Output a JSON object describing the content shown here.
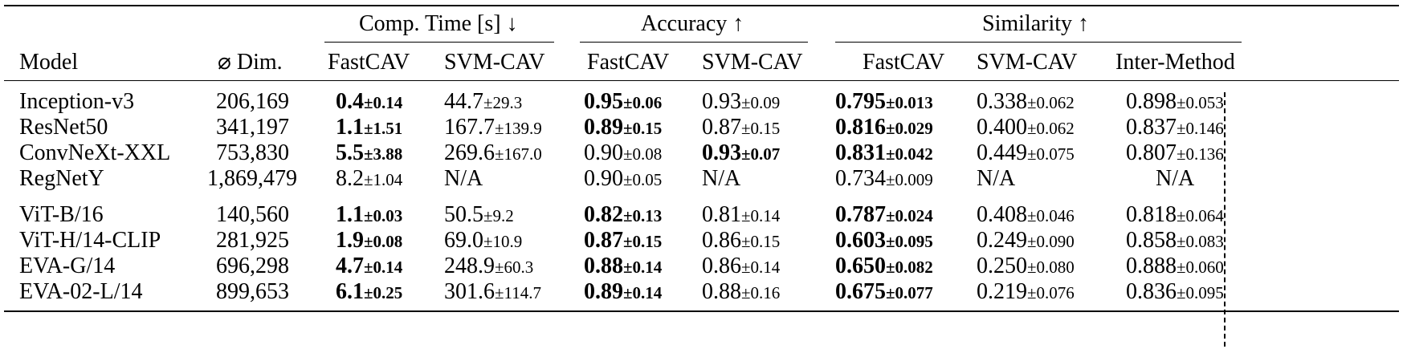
{
  "headers": {
    "model": "Model",
    "dim": "⌀ Dim.",
    "groups": {
      "comp_time": "Comp. Time [s] ↓",
      "accuracy": "Accuracy ↑",
      "similarity": "Similarity ↑"
    },
    "fastcav": "FastCAV",
    "svmcav": "SVM-CAV",
    "inter": "Inter-Method"
  },
  "rows": [
    {
      "model": "Inception-v3",
      "dim": "206,169",
      "t_f": "0.4",
      "t_f_pm": "±0.14",
      "t_f_bold": true,
      "t_s": "44.7",
      "t_s_pm": "±29.3",
      "t_s_bold": false,
      "a_f": "0.95",
      "a_f_pm": "±0.06",
      "a_f_bold": true,
      "a_s": "0.93",
      "a_s_pm": "±0.09",
      "a_s_bold": false,
      "s_f": "0.795",
      "s_f_pm": "±0.013",
      "s_f_bold": true,
      "s_s": "0.338",
      "s_s_pm": "±0.062",
      "s_s_bold": false,
      "s_i": "0.898",
      "s_i_pm": "±0.053"
    },
    {
      "model": "ResNet50",
      "dim": "341,197",
      "t_f": "1.1",
      "t_f_pm": "±1.51",
      "t_f_bold": true,
      "t_s": "167.7",
      "t_s_pm": "±139.9",
      "t_s_bold": false,
      "a_f": "0.89",
      "a_f_pm": "±0.15",
      "a_f_bold": true,
      "a_s": "0.87",
      "a_s_pm": "±0.15",
      "a_s_bold": false,
      "s_f": "0.816",
      "s_f_pm": "±0.029",
      "s_f_bold": true,
      "s_s": "0.400",
      "s_s_pm": "±0.062",
      "s_s_bold": false,
      "s_i": "0.837",
      "s_i_pm": "±0.146"
    },
    {
      "model": "ConvNeXt-XXL",
      "dim": "753,830",
      "t_f": "5.5",
      "t_f_pm": "±3.88",
      "t_f_bold": true,
      "t_s": "269.6",
      "t_s_pm": "±167.0",
      "t_s_bold": false,
      "a_f": "0.90",
      "a_f_pm": "±0.08",
      "a_f_bold": false,
      "a_s": "0.93",
      "a_s_pm": "±0.07",
      "a_s_bold": true,
      "s_f": "0.831",
      "s_f_pm": "±0.042",
      "s_f_bold": true,
      "s_s": "0.449",
      "s_s_pm": "±0.075",
      "s_s_bold": false,
      "s_i": "0.807",
      "s_i_pm": "±0.136"
    },
    {
      "model": "RegNetY",
      "dim": "1,869,479",
      "t_f": "8.2",
      "t_f_pm": "±1.04",
      "t_f_bold": false,
      "t_s": "N/A",
      "t_s_pm": "",
      "t_s_bold": false,
      "a_f": "0.90",
      "a_f_pm": "±0.05",
      "a_f_bold": false,
      "a_s": "N/A",
      "a_s_pm": "",
      "a_s_bold": false,
      "s_f": "0.734",
      "s_f_pm": "±0.009",
      "s_f_bold": false,
      "s_s": "N/A",
      "s_s_pm": "",
      "s_s_bold": false,
      "s_i": "N/A",
      "s_i_pm": ""
    },
    {
      "model": "ViT-B/16",
      "dim": "140,560",
      "t_f": "1.1",
      "t_f_pm": "±0.03",
      "t_f_bold": true,
      "t_s": "50.5",
      "t_s_pm": "±9.2",
      "t_s_bold": false,
      "a_f": "0.82",
      "a_f_pm": "±0.13",
      "a_f_bold": true,
      "a_s": "0.81",
      "a_s_pm": "±0.14",
      "a_s_bold": false,
      "s_f": "0.787",
      "s_f_pm": "±0.024",
      "s_f_bold": true,
      "s_s": "0.408",
      "s_s_pm": "±0.046",
      "s_s_bold": false,
      "s_i": "0.818",
      "s_i_pm": "±0.064"
    },
    {
      "model": "ViT-H/14-CLIP",
      "dim": "281,925",
      "t_f": "1.9",
      "t_f_pm": "±0.08",
      "t_f_bold": true,
      "t_s": "69.0",
      "t_s_pm": "±10.9",
      "t_s_bold": false,
      "a_f": "0.87",
      "a_f_pm": "±0.15",
      "a_f_bold": true,
      "a_s": "0.86",
      "a_s_pm": "±0.15",
      "a_s_bold": false,
      "s_f": "0.603",
      "s_f_pm": "±0.095",
      "s_f_bold": true,
      "s_s": "0.249",
      "s_s_pm": "±0.090",
      "s_s_bold": false,
      "s_i": "0.858",
      "s_i_pm": "±0.083"
    },
    {
      "model": "EVA-G/14",
      "dim": "696,298",
      "t_f": "4.7",
      "t_f_pm": "±0.14",
      "t_f_bold": true,
      "t_s": "248.9",
      "t_s_pm": "±60.3",
      "t_s_bold": false,
      "a_f": "0.88",
      "a_f_pm": "±0.14",
      "a_f_bold": true,
      "a_s": "0.86",
      "a_s_pm": "±0.14",
      "a_s_bold": false,
      "s_f": "0.650",
      "s_f_pm": "±0.082",
      "s_f_bold": true,
      "s_s": "0.250",
      "s_s_pm": "±0.080",
      "s_s_bold": false,
      "s_i": "0.888",
      "s_i_pm": "±0.060"
    },
    {
      "model": "EVA-02-L/14",
      "dim": "899,653",
      "t_f": "6.1",
      "t_f_pm": "±0.25",
      "t_f_bold": true,
      "t_s": "301.6",
      "t_s_pm": "±114.7",
      "t_s_bold": false,
      "a_f": "0.89",
      "a_f_pm": "±0.14",
      "a_f_bold": true,
      "a_s": "0.88",
      "a_s_pm": "±0.16",
      "a_s_bold": false,
      "s_f": "0.675",
      "s_f_pm": "±0.077",
      "s_f_bold": true,
      "s_s": "0.219",
      "s_s_pm": "±0.076",
      "s_s_bold": false,
      "s_i": "0.836",
      "s_i_pm": "±0.095"
    }
  ]
}
